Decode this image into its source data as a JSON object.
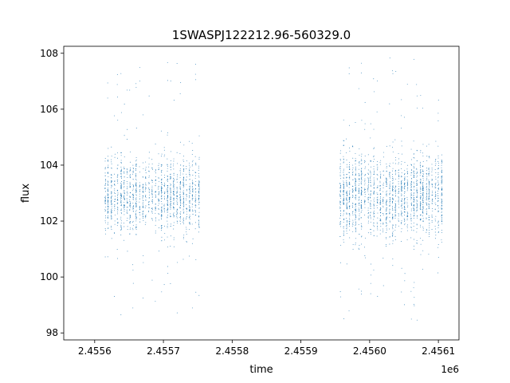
{
  "chart_data": {
    "type": "scatter",
    "title": "1SWASPJ122212.96-560329.0",
    "xlabel": "time",
    "ylabel": "flux",
    "x_offset_label": "1e6",
    "xlim": [
      2455555,
      2456130
    ],
    "ylim": [
      97.75,
      108.25
    ],
    "x_ticks": [
      2455600,
      2455700,
      2455800,
      2455900,
      2456000,
      2456100
    ],
    "x_tick_labels": [
      "2.4556",
      "2.4557",
      "2.4558",
      "2.4559",
      "2.4560",
      "2.4561"
    ],
    "y_ticks": [
      98,
      100,
      102,
      104,
      106,
      108
    ],
    "y_tick_labels": [
      "98",
      "100",
      "102",
      "104",
      "106",
      "108"
    ],
    "grid": false,
    "legend": "none",
    "marker_color": "#1f77b4",
    "series": [
      {
        "segments": [
          {
            "x_start": 2455613,
            "x_end": 2455754,
            "flux_center": 102.9,
            "flux_core_spread": 1.1,
            "flux_min": 98.3,
            "flux_max": 107.9
          },
          {
            "x_start": 2455955,
            "x_end": 2456107,
            "flux_center": 102.9,
            "flux_core_spread": 1.2,
            "flux_min": 98.3,
            "flux_max": 107.9
          }
        ]
      }
    ]
  }
}
